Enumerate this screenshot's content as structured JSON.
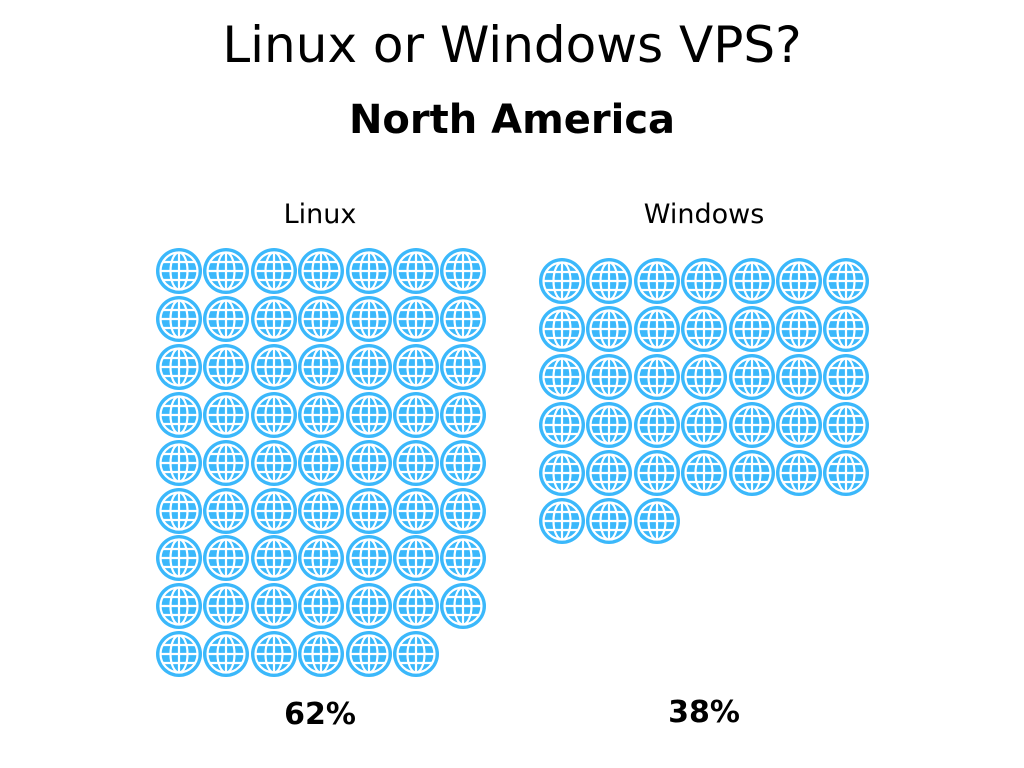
{
  "title": "Linux or Windows VPS?",
  "subtitle": "North America",
  "panels": [
    {
      "label": "Linux",
      "percent_label": "62%",
      "count": 62
    },
    {
      "label": "Windows",
      "percent_label": "38%",
      "count": 38
    }
  ],
  "icon": "globe-icon",
  "colors": {
    "icon_fill": "#3bb8fb",
    "icon_lines": "#ffffff",
    "text": "#000000",
    "background": "#ffffff"
  },
  "chart_data": {
    "type": "pictogram",
    "title": "Linux or Windows VPS?",
    "subtitle": "North America",
    "categories": [
      "Linux",
      "Windows"
    ],
    "values": [
      62,
      38
    ],
    "unit": "%",
    "icons_per_row": 7,
    "icon_count": [
      62,
      38
    ],
    "data_labels": [
      "62%",
      "38%"
    ]
  }
}
